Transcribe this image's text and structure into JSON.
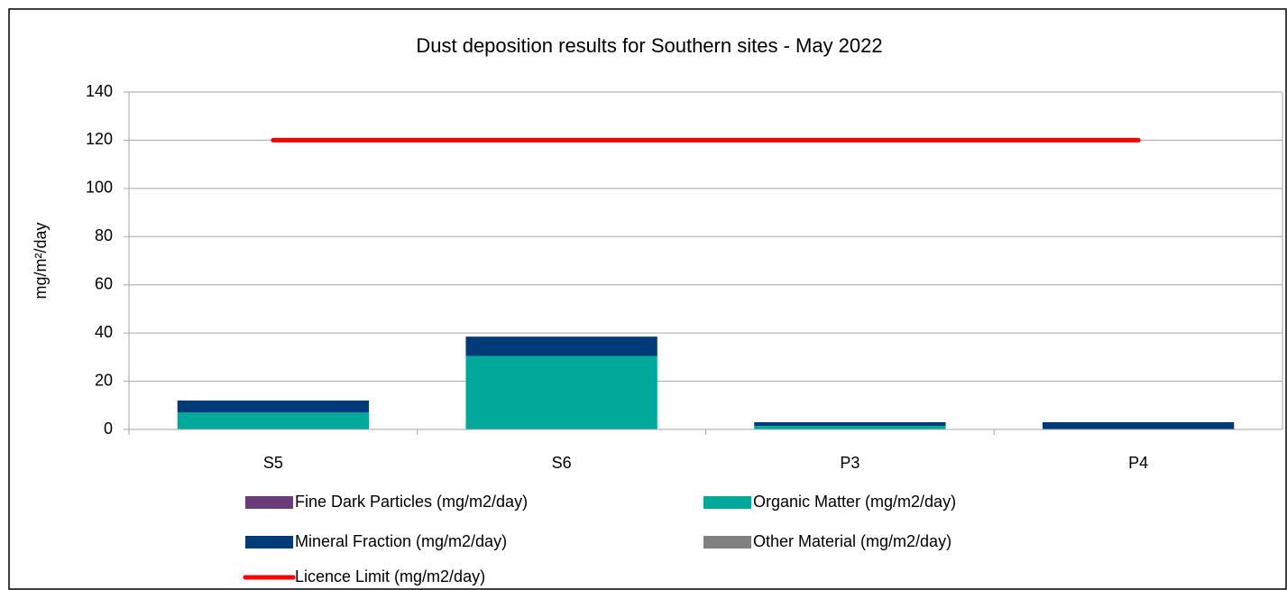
{
  "chart_data": {
    "type": "bar",
    "stacked": true,
    "title": "Dust deposition results for Southern sites - May 2022",
    "y_label": "mg/m²/day",
    "categories": [
      "S5",
      "S6",
      "P3",
      "P4"
    ],
    "series": [
      {
        "name": "Fine Dark Particles (mg/m2/day)",
        "color": "#6a3d7a",
        "values": [
          0,
          0,
          0,
          0
        ]
      },
      {
        "name": "Organic Matter (mg/m2/day)",
        "color": "#00a99a",
        "values": [
          7,
          30.5,
          1.5,
          0
        ]
      },
      {
        "name": "Mineral Fraction (mg/m2/day)",
        "color": "#003a78",
        "values": [
          5,
          8,
          1.5,
          3
        ]
      },
      {
        "name": "Other Material (mg/m2/day)",
        "color": "#808080",
        "values": [
          0,
          0,
          0,
          0
        ]
      },
      {
        "name": "Licence Limit  (mg/m2/day)",
        "color": "#ff0000",
        "type": "line",
        "values": [
          120,
          120,
          120,
          120
        ]
      }
    ],
    "ylim": [
      0,
      140
    ],
    "yticks": [
      0,
      20,
      40,
      60,
      80,
      100,
      120,
      140
    ],
    "grid": true
  }
}
